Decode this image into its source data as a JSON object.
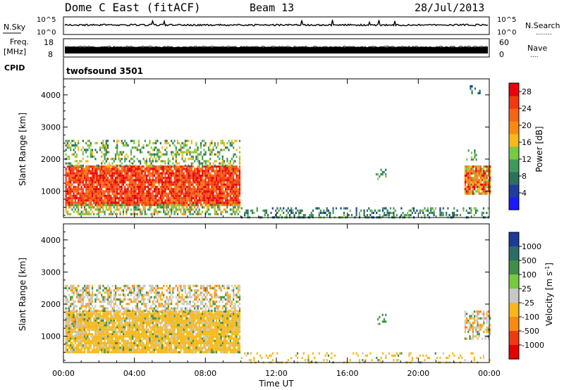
{
  "header": {
    "station": "Dome C East (fitACF)",
    "beam": "Beam 13",
    "date": "28/Jul/2013"
  },
  "top_panels": {
    "nsky_label": "N.Sky",
    "nsearch_label": "N.Search",
    "nsearch_dots": "........",
    "freq_label": "Freq.",
    "freq_unit": "[MHz]",
    "nave_label": "Nave",
    "nave_dots": "....",
    "cpid_label": "CPID",
    "nsky_ticks": [
      "10^5",
      "10^0"
    ],
    "nsearch_ticks": [
      "10^5",
      "10^0"
    ],
    "freq_ticks": [
      "18",
      "8"
    ],
    "nave_ticks": [
      "60",
      "0"
    ],
    "cpid_name": "twofsound 3501"
  },
  "colors": {
    "power_scale": [
      "#1a1aff",
      "#1f3d9e",
      "#2e6f5e",
      "#3f9a5a",
      "#7ac943",
      "#f6b81a",
      "#f88a13",
      "#f56516",
      "#f23a0f",
      "#e8000b"
    ],
    "velocity_scale": [
      "#1b3a9a",
      "#2b6c66",
      "#3f8f46",
      "#7ac943",
      "#c8c8c8",
      "#f6b81a",
      "#f88a13",
      "#ee3a12",
      "#e60000"
    ]
  },
  "chart_data": [
    {
      "type": "heatmap",
      "title": "Power",
      "xlabel": "",
      "ylabel": "Slant Range [km]",
      "x_ticks": [
        "00:00",
        "04:00",
        "08:00",
        "12:00",
        "16:00",
        "20:00",
        "00:00"
      ],
      "x_hours": [
        0,
        4,
        8,
        12,
        16,
        20,
        24
      ],
      "xlim": [
        0,
        24
      ],
      "y_ticks": [
        1000,
        2000,
        3000,
        4000
      ],
      "ylim": [
        180,
        4500
      ],
      "colorbar": {
        "label": "Power [dB]",
        "ticks": [
          4,
          8,
          12,
          16,
          20,
          24,
          28
        ],
        "range": [
          0,
          30
        ]
      },
      "regions": [
        {
          "x": [
            0.1,
            9.9
          ],
          "y": [
            600,
            1800
          ],
          "value_range": [
            20,
            30
          ],
          "note_level": "strong"
        },
        {
          "x": [
            0.1,
            9.9
          ],
          "y": [
            1800,
            2600
          ],
          "value_range": [
            6,
            18
          ],
          "note_level": "weak"
        },
        {
          "x": [
            0.1,
            9.9
          ],
          "y": [
            250,
            600
          ],
          "value_range": [
            8,
            20
          ],
          "note_level": "medium"
        },
        {
          "x": [
            10,
            24
          ],
          "y": [
            180,
            500
          ],
          "value_range": [
            4,
            14
          ],
          "note_level": "weak"
        },
        {
          "x": [
            17.6,
            18.2
          ],
          "y": [
            1400,
            1700
          ],
          "value_range": [
            8,
            16
          ],
          "note_level": "weak"
        },
        {
          "x": [
            22.6,
            24
          ],
          "y": [
            900,
            1800
          ],
          "value_range": [
            12,
            30
          ],
          "note_level": "strong"
        },
        {
          "x": [
            22.7,
            23.3
          ],
          "y": [
            2000,
            2300
          ],
          "value_range": [
            8,
            16
          ],
          "note_level": "weak"
        },
        {
          "x": [
            22.9,
            23.5
          ],
          "y": [
            4050,
            4300
          ],
          "value_range": [
            4,
            10
          ],
          "note_level": "weak"
        }
      ]
    },
    {
      "type": "heatmap",
      "title": "Velocity",
      "xlabel": "Time UT",
      "ylabel": "Slant Range [km]",
      "x_ticks": [
        "00:00",
        "04:00",
        "08:00",
        "12:00",
        "16:00",
        "20:00",
        "00:00"
      ],
      "x_hours": [
        0,
        4,
        8,
        12,
        16,
        20,
        24
      ],
      "xlim": [
        0,
        24
      ],
      "y_ticks": [
        1000,
        2000,
        3000,
        4000
      ],
      "ylim": [
        180,
        4500
      ],
      "colorbar": {
        "label": "Velocity [m s^-1]",
        "ticks": [
          "1000",
          "500",
          "100",
          "25",
          "-25",
          "-100",
          "-500",
          "-1000"
        ]
      },
      "regions": [
        {
          "x": [
            0.1,
            9.9
          ],
          "y": [
            500,
            1800
          ],
          "value": -100,
          "note_level": "dominant"
        },
        {
          "x": [
            0.1,
            9.9
          ],
          "y": [
            1800,
            2600
          ],
          "value": 0,
          "note_level": "mixed"
        },
        {
          "x": [
            0.1,
            1.2
          ],
          "y": [
            1000,
            1700
          ],
          "value": 100,
          "note_level": "mixed"
        },
        {
          "x": [
            10,
            24
          ],
          "y": [
            180,
            500
          ],
          "value": -100,
          "note_level": "sparse"
        },
        {
          "x": [
            17.6,
            18.2
          ],
          "y": [
            1400,
            1700
          ],
          "value": 100,
          "note_level": "weak"
        },
        {
          "x": [
            22.6,
            24
          ],
          "y": [
            900,
            1800
          ],
          "value": -100,
          "note_level": "mixed"
        }
      ]
    }
  ]
}
